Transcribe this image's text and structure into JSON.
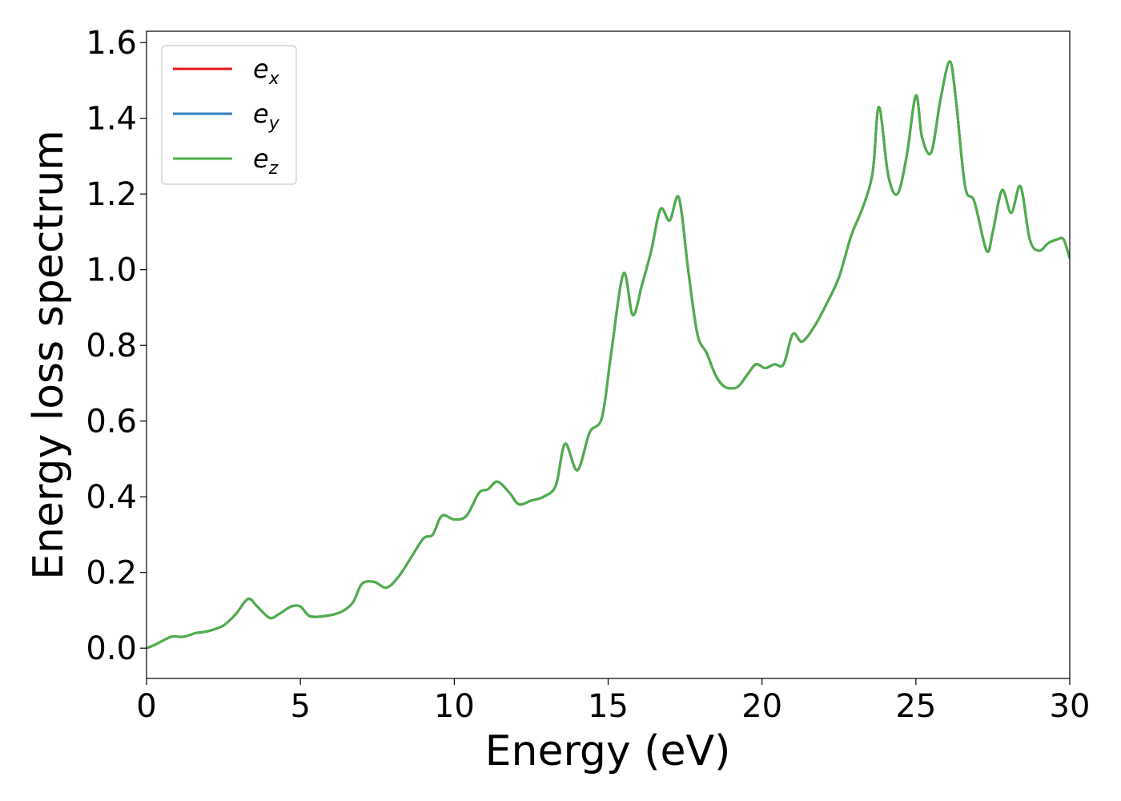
{
  "chart_data": {
    "type": "line",
    "xlabel": "Energy (eV)",
    "ylabel": "Energy loss spectrum",
    "xlim": [
      0,
      30
    ],
    "ylim": [
      -0.08,
      1.63
    ],
    "xticks": [
      0,
      5,
      10,
      15,
      20,
      25,
      30
    ],
    "xtick_labels": [
      "0",
      "5",
      "10",
      "15",
      "20",
      "25",
      "30"
    ],
    "yticks": [
      0.0,
      0.2,
      0.4,
      0.6,
      0.8,
      1.0,
      1.2,
      1.4,
      1.6
    ],
    "ytick_labels": [
      "0.0",
      "0.2",
      "0.4",
      "0.6",
      "0.8",
      "1.0",
      "1.2",
      "1.4",
      "1.6"
    ],
    "grid": false,
    "legend_position": "top-left",
    "series": [
      {
        "name": "e",
        "subscript": "x",
        "color": "#e41a1c"
      },
      {
        "name": "e",
        "subscript": "y",
        "color": "#377eb8"
      },
      {
        "name": "e",
        "subscript": "z",
        "color": "#4daf4a"
      }
    ],
    "x": [
      0,
      0.3,
      0.8,
      1.2,
      1.6,
      2.0,
      2.5,
      2.9,
      3.3,
      3.6,
      4.0,
      4.3,
      4.7,
      5.0,
      5.3,
      5.8,
      6.3,
      6.7,
      7.0,
      7.4,
      7.8,
      8.2,
      8.6,
      9.0,
      9.3,
      9.6,
      10.0,
      10.4,
      10.8,
      11.1,
      11.4,
      11.8,
      12.1,
      12.5,
      12.9,
      13.3,
      13.6,
      14.0,
      14.4,
      14.8,
      15.1,
      15.5,
      15.8,
      16.1,
      16.4,
      16.7,
      17.0,
      17.3,
      17.6,
      17.9,
      18.2,
      18.5,
      18.8,
      19.2,
      19.5,
      19.8,
      20.1,
      20.4,
      20.7,
      21.0,
      21.3,
      21.7,
      22.1,
      22.5,
      22.9,
      23.3,
      23.6,
      23.8,
      24.1,
      24.4,
      24.7,
      25.0,
      25.2,
      25.5,
      25.8,
      26.1,
      26.3,
      26.6,
      26.9,
      27.3,
      27.5,
      27.8,
      28.1,
      28.4,
      28.7,
      29.0,
      29.3,
      29.6,
      29.8,
      30.0
    ],
    "y": [
      0.0,
      0.01,
      0.03,
      0.03,
      0.04,
      0.045,
      0.06,
      0.09,
      0.13,
      0.11,
      0.08,
      0.09,
      0.11,
      0.11,
      0.085,
      0.085,
      0.095,
      0.12,
      0.17,
      0.175,
      0.16,
      0.19,
      0.24,
      0.29,
      0.3,
      0.35,
      0.34,
      0.35,
      0.41,
      0.42,
      0.44,
      0.41,
      0.38,
      0.39,
      0.4,
      0.43,
      0.54,
      0.47,
      0.57,
      0.61,
      0.78,
      0.99,
      0.88,
      0.96,
      1.05,
      1.16,
      1.13,
      1.19,
      1.0,
      0.83,
      0.78,
      0.72,
      0.69,
      0.69,
      0.72,
      0.75,
      0.74,
      0.75,
      0.75,
      0.83,
      0.81,
      0.85,
      0.91,
      0.98,
      1.09,
      1.17,
      1.26,
      1.43,
      1.25,
      1.2,
      1.3,
      1.46,
      1.35,
      1.31,
      1.45,
      1.55,
      1.45,
      1.22,
      1.18,
      1.05,
      1.1,
      1.21,
      1.15,
      1.22,
      1.08,
      1.05,
      1.07,
      1.08,
      1.08,
      1.03
    ]
  }
}
